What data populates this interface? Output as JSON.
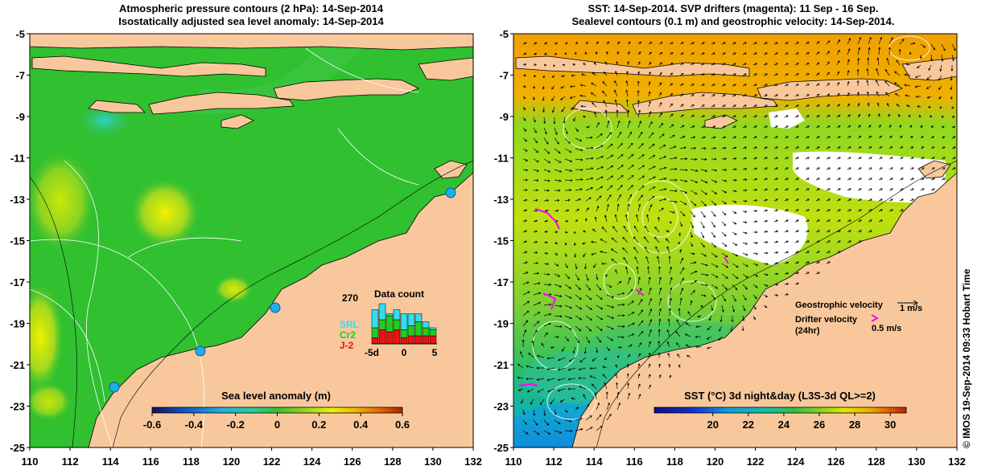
{
  "left_panel": {
    "title_line1": "Atmospheric pressure contours (2 hPa): 14-Sep-2014",
    "title_line2": "Isostatically adjusted sea level anomaly: 14-Sep-2014",
    "colorbar": {
      "title": "Sea level anomaly (m)",
      "ticks": [
        "-0.6",
        "-0.4",
        "-0.2",
        "0",
        "0.2",
        "0.4",
        "0.6"
      ],
      "min": -0.6,
      "max": 0.6
    },
    "data_count": {
      "title": "Data count",
      "max_label": "270",
      "legend": [
        {
          "label": "SRL",
          "color": "#33ddee"
        },
        {
          "label": "Cr2",
          "color": "#22cc22"
        },
        {
          "label": "J-2",
          "color": "#ee1111"
        }
      ],
      "x_ticks": [
        "-5d",
        "0",
        "5"
      ],
      "bars": [
        {
          "j2": 0.15,
          "cr2": 0.25,
          "srl": 0.45
        },
        {
          "j2": 0.35,
          "cr2": 0.25,
          "srl": 0.4
        },
        {
          "j2": 0.3,
          "cr2": 0.4,
          "srl": 0.05
        },
        {
          "j2": 0.35,
          "cr2": 0.25,
          "srl": 0.25
        },
        {
          "j2": 0.15,
          "cr2": 0.2,
          "srl": 0.4
        },
        {
          "j2": 0.2,
          "cr2": 0.25,
          "srl": 0.3
        },
        {
          "j2": 0.2,
          "cr2": 0.35,
          "srl": 0.2
        },
        {
          "j2": 0.2,
          "cr2": 0.2,
          "srl": 0.15
        },
        {
          "j2": 0.2,
          "cr2": 0.15,
          "srl": 0.05
        }
      ]
    }
  },
  "right_panel": {
    "title_line1": "SST: 14-Sep-2014. SVP drifters (magenta): 11 Sep - 16 Sep.",
    "title_line2": "Sealevel contours (0.1 m) and geostrophic velocity: 14-Sep-2014.",
    "colorbar": {
      "title": "SST (°C) 3d night&day (L3S-3d QL>=2)",
      "ticks": [
        "20",
        "22",
        "24",
        "26",
        "28",
        "30"
      ],
      "min": 16.7,
      "max": 30.9
    },
    "legend": {
      "geostrophic_label": "Geostrophic velocity",
      "geostrophic_value": "1 m/s",
      "drifter_label": "Drifter velocity",
      "drifter_sub": "(24hr)",
      "drifter_value": "0.5 m/s"
    }
  },
  "axes": {
    "lon_ticks": [
      "110",
      "112",
      "114",
      "116",
      "118",
      "120",
      "122",
      "124",
      "126",
      "128",
      "130",
      "132"
    ],
    "lat_ticks": [
      "-5",
      "-7",
      "-9",
      "-11",
      "-13",
      "-15",
      "-17",
      "-19",
      "-21",
      "-23",
      "-25"
    ],
    "lon_range": [
      110,
      132
    ],
    "lat_range": [
      -25,
      -5
    ]
  },
  "credit": "© IMOS 19-Sep-2014 09:33 Hobart Time",
  "colors": {
    "land": "#f8c89c",
    "sla_scale": [
      "#10105a",
      "#1050c0",
      "#20b0e0",
      "#30c8a0",
      "#30c030",
      "#a0d820",
      "#f0f000",
      "#f0b000",
      "#e06000",
      "#b02000"
    ],
    "sst_scale": [
      "#101080",
      "#1030d0",
      "#10a0e0",
      "#10c0a0",
      "#30c040",
      "#80d020",
      "#e0e800",
      "#f0b000",
      "#e06000",
      "#c02000"
    ],
    "drifter": "#ff00ff"
  }
}
